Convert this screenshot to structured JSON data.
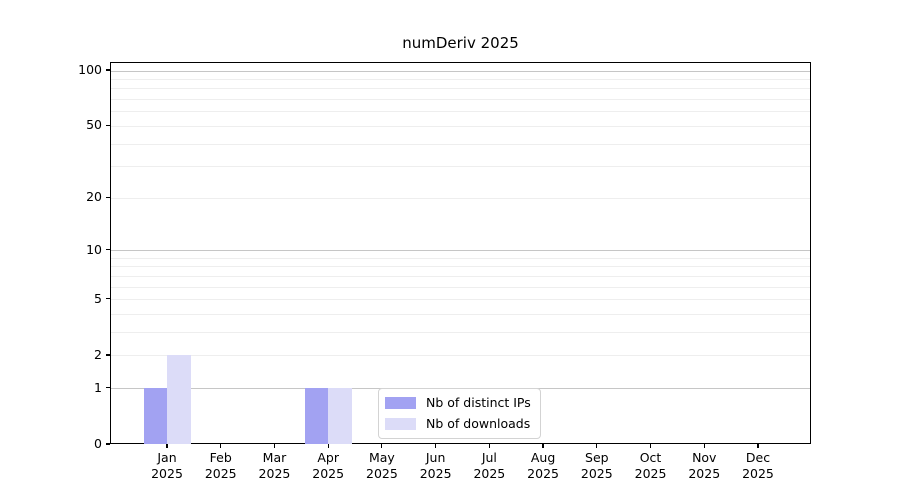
{
  "chart_data": {
    "type": "bar",
    "title": "numDeriv 2025",
    "categories": [
      "Jan",
      "Feb",
      "Mar",
      "Apr",
      "May",
      "Jun",
      "Jul",
      "Aug",
      "Sep",
      "Oct",
      "Nov",
      "Dec"
    ],
    "year": "2025",
    "series": [
      {
        "name": "Nb of distinct IPs",
        "color": "#a2a2f2",
        "values": [
          1,
          0,
          0,
          1,
          0,
          0,
          0,
          0,
          0,
          0,
          0,
          0
        ]
      },
      {
        "name": "Nb of downloads",
        "color": "#dcdcf8",
        "values": [
          2,
          0,
          0,
          1,
          0,
          0,
          0,
          0,
          0,
          0,
          0,
          0
        ]
      }
    ],
    "xlabel": "",
    "ylabel": "",
    "y_scale": "log1p",
    "y_ticks": [
      0,
      1,
      2,
      5,
      10,
      20,
      50,
      100
    ],
    "grid_major": [
      1,
      10,
      100
    ],
    "grid_minor": [
      2,
      3,
      4,
      5,
      6,
      7,
      8,
      9,
      20,
      30,
      40,
      50,
      60,
      70,
      80,
      90
    ],
    "ylim": [
      0,
      110
    ],
    "grid": true,
    "legend_position": "inside-bottom-center"
  },
  "colors": {
    "grid_major": "#c6c6c6",
    "grid_minor": "#eeeeee",
    "axis": "#000000",
    "legend_border": "#d3d3d3",
    "background": "#ffffff"
  }
}
